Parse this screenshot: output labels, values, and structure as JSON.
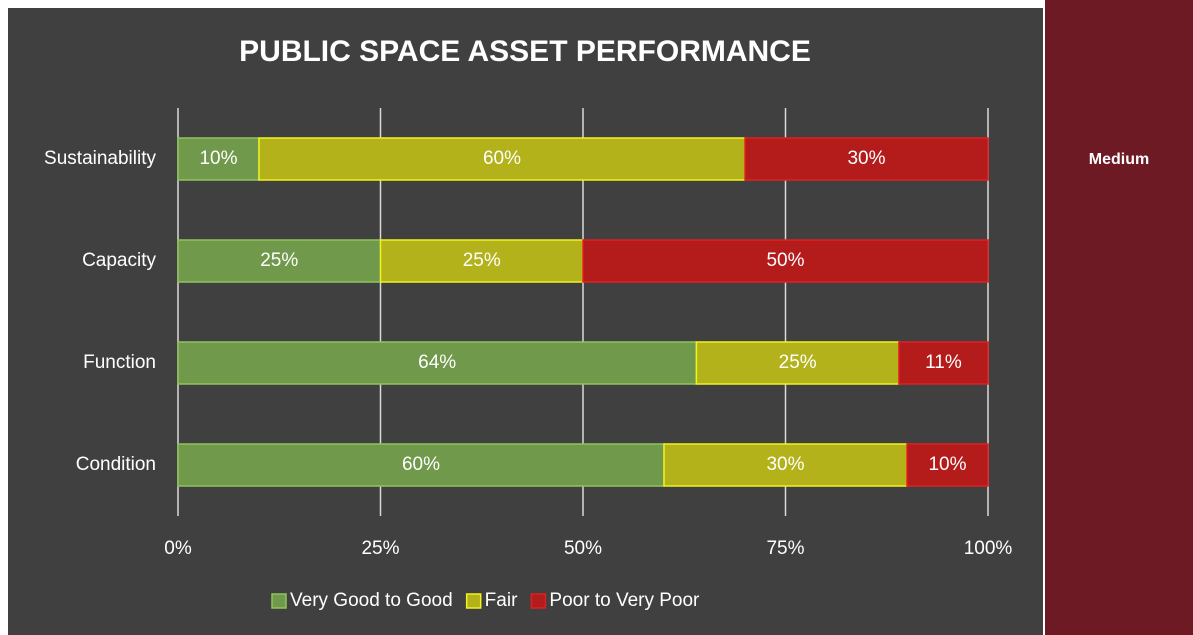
{
  "chart_data": {
    "type": "stacked_barh",
    "title": "PUBLIC SPACE ASSET PERFORMANCE",
    "categories": [
      "Sustainability",
      "Capacity",
      "Function",
      "Condition"
    ],
    "series": [
      {
        "name": "Very Good to Good",
        "color": "#70994b",
        "edge": "#8fc45e",
        "values": [
          10,
          25,
          64,
          60
        ],
        "value_labels": [
          "10%",
          "25%",
          "64%",
          "60%"
        ]
      },
      {
        "name": "Fair",
        "color": "#b3b21b",
        "edge": "#f2f21c",
        "values": [
          60,
          25,
          25,
          30
        ],
        "value_labels": [
          "60%",
          "25%",
          "25%",
          "30%"
        ]
      },
      {
        "name": "Poor to Very Poor",
        "color": "#b41b1b",
        "edge": "#e02020",
        "values": [
          30,
          50,
          11,
          10
        ],
        "value_labels": [
          "30%",
          "50%",
          "11%",
          "10%"
        ]
      }
    ],
    "xlim": [
      0,
      100
    ],
    "xticks": [
      {
        "value": 0,
        "label": "0%"
      },
      {
        "value": 25,
        "label": "25%"
      },
      {
        "value": 50,
        "label": "50%"
      },
      {
        "value": 75,
        "label": "75%"
      },
      {
        "value": 100,
        "label": "100%"
      }
    ],
    "grid": true,
    "legend": "bottom"
  },
  "side_panel": {
    "label": "Medium"
  }
}
